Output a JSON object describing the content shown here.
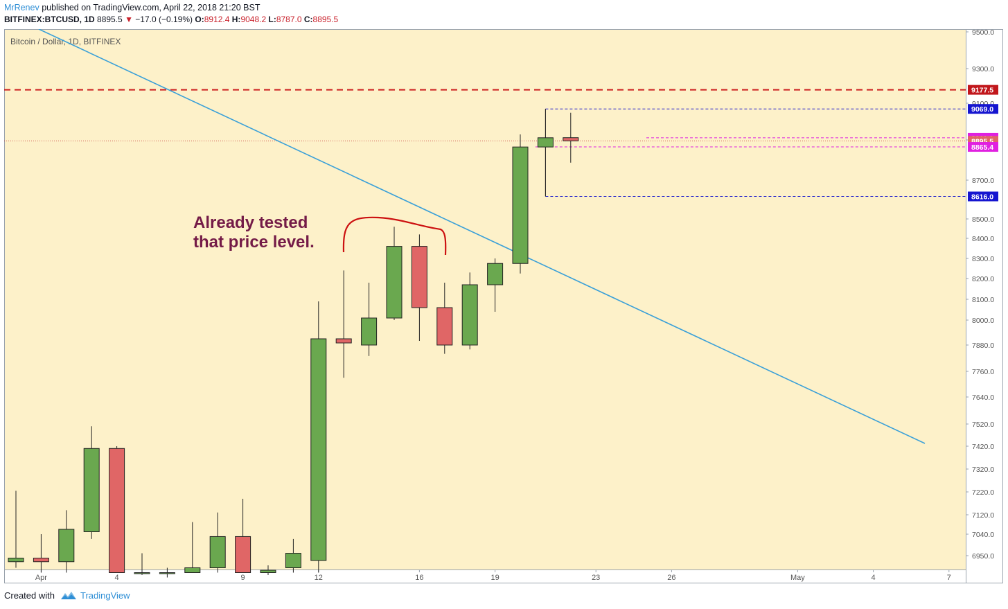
{
  "header": {
    "author": "MrRenev",
    "published_text": "published on TradingView.com, April 22, 2018 21:20 BST",
    "symbol": "BITFINEX:BTCUSD, 1D",
    "last": "8895.5",
    "change": "−17.0 (−0.19%)",
    "o_label": "O:",
    "o": "8912.4",
    "h_label": "H:",
    "h": "9048.2",
    "l_label": "L:",
    "l": "8787.0",
    "c_label": "C:",
    "c": "8895.5"
  },
  "footer": {
    "created_with": "Created with",
    "brand": "TradingView"
  },
  "colors": {
    "background": "#fdf1c9",
    "up": "#6aa84f",
    "down": "#e06666",
    "trendline": "#3aa0d8",
    "resistance": "#cc1f1f",
    "box": "#2020cc",
    "magenta": "#e020e0",
    "annotation": "#741b47",
    "bracket": "#cc1010"
  },
  "chart_data": {
    "type": "candlestick",
    "title": "Bitcoin / Dollar, 1D, BITFINEX",
    "x_tick_labels": [
      "Apr",
      "4",
      "9",
      "12",
      "16",
      "19",
      "23",
      "26",
      "May",
      "4",
      "7"
    ],
    "y_tick_labels": [
      "9500.0",
      "9300.0",
      "9100.0",
      "8900.0",
      "8700.0",
      "8500.0",
      "8400.0",
      "8300.0",
      "8200.0",
      "8100.0",
      "8000.0",
      "7880.0",
      "7760.0",
      "7640.0",
      "7520.0",
      "7420.0",
      "7320.0",
      "7220.0",
      "7120.0",
      "7040.0",
      "6950.0"
    ],
    "candles": [
      {
        "date": "Mar 31",
        "o": 6925,
        "h": 7225,
        "l": 6900,
        "c": 6940
      },
      {
        "date": "Apr 1",
        "o": 6940,
        "h": 7040,
        "l": 6880,
        "c": 6925
      },
      {
        "date": "Apr 2",
        "o": 6925,
        "h": 7140,
        "l": 6880,
        "c": 7060
      },
      {
        "date": "Apr 3",
        "o": 7050,
        "h": 7510,
        "l": 7020,
        "c": 7410
      },
      {
        "date": "Apr 4",
        "o": 7410,
        "h": 7420,
        "l": 6880,
        "c": 6880
      },
      {
        "date": "Apr 5",
        "o": 6880,
        "h": 6960,
        "l": 6870,
        "c": 6880
      },
      {
        "date": "Apr 6",
        "o": 6880,
        "h": 6900,
        "l": 6860,
        "c": 6880
      },
      {
        "date": "Apr 7",
        "o": 6880,
        "h": 7090,
        "l": 6880,
        "c": 6900
      },
      {
        "date": "Apr 8",
        "o": 6900,
        "h": 7130,
        "l": 6880,
        "c": 7030
      },
      {
        "date": "Apr 9",
        "o": 7030,
        "h": 7190,
        "l": 6880,
        "c": 6880
      },
      {
        "date": "Apr 10",
        "o": 6880,
        "h": 6910,
        "l": 6870,
        "c": 6890
      },
      {
        "date": "Apr 11",
        "o": 6900,
        "h": 7020,
        "l": 6880,
        "c": 6960
      },
      {
        "date": "Apr 12",
        "o": 6930,
        "h": 8090,
        "l": 6880,
        "c": 7910
      },
      {
        "date": "Apr 13",
        "o": 7910,
        "h": 8240,
        "l": 7730,
        "c": 7890
      },
      {
        "date": "Apr 14",
        "o": 7880,
        "h": 8180,
        "l": 7830,
        "c": 8010
      },
      {
        "date": "Apr 15",
        "o": 8010,
        "h": 8460,
        "l": 8000,
        "c": 8360
      },
      {
        "date": "Apr 16",
        "o": 8360,
        "h": 8420,
        "l": 7900,
        "c": 8060
      },
      {
        "date": "Apr 17",
        "o": 8060,
        "h": 8180,
        "l": 7840,
        "c": 7880
      },
      {
        "date": "Apr 18",
        "o": 7880,
        "h": 8230,
        "l": 7860,
        "c": 8170
      },
      {
        "date": "Apr 19",
        "o": 8170,
        "h": 8300,
        "l": 8040,
        "c": 8275
      },
      {
        "date": "Apr 20",
        "o": 8275,
        "h": 8930,
        "l": 8225,
        "c": 8865
      },
      {
        "date": "Apr 21",
        "o": 8865,
        "h": 9069,
        "l": 8616,
        "c": 8912
      },
      {
        "date": "Apr 22",
        "o": 8912.4,
        "h": 9048.2,
        "l": 8787,
        "c": 8895.5
      }
    ],
    "levels": {
      "resistance": {
        "value": 9177.5,
        "label": "9177.5"
      },
      "box_high": {
        "value": 9069.0,
        "label": "9069.0"
      },
      "box_low": {
        "value": 8616.0,
        "label": "8616.0"
      },
      "magenta_high": {
        "value": 8911.6,
        "label": "8911.6"
      },
      "last_price": {
        "value": 8895.5,
        "label": "8895.5"
      },
      "magenta_low": {
        "value": 8865.4,
        "label": "8865.4"
      }
    },
    "annotation": {
      "line1": "Already tested",
      "line2": "that price level."
    }
  }
}
